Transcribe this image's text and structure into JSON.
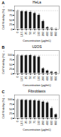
{
  "chart_data": [
    {
      "type": "bar",
      "title": "HeLa",
      "annotations": [
        "A"
      ],
      "categories": [
        "0",
        "12.5",
        "25",
        "50",
        "75",
        "100",
        "200",
        "400",
        "600",
        "800"
      ],
      "values": [
        100,
        98,
        97,
        94,
        88,
        78,
        45,
        12,
        8,
        6
      ],
      "errors": [
        3,
        3,
        4,
        5,
        5,
        6,
        5,
        3,
        2,
        2
      ],
      "colors": [
        "#b0b0b0",
        "#1a1a1a",
        "#1a1a1a",
        "#1a1a1a",
        "#1a1a1a",
        "#1a1a1a",
        "#1a1a1a",
        "#1a1a1a",
        "#1a1a1a",
        "#1a1a1a"
      ],
      "reference_lines": [
        100
      ],
      "xlabel": "Concentration (μg/mL)",
      "ylabel": "Cell Viability (%)",
      "ylim": [
        0,
        125
      ],
      "yticks": [
        0,
        25,
        50,
        75,
        100
      ],
      "grid": false
    },
    {
      "type": "bar",
      "title": "U2OS",
      "annotations": [
        "B"
      ],
      "categories": [
        "0",
        "12.5",
        "25",
        "50",
        "75",
        "100",
        "200",
        "400",
        "600",
        "800"
      ],
      "values": [
        100,
        99,
        100,
        101,
        96,
        92,
        30,
        18,
        12,
        10
      ],
      "errors": [
        3,
        3,
        3,
        4,
        4,
        5,
        4,
        3,
        2,
        2
      ],
      "colors": [
        "#b0b0b0",
        "#1a1a1a",
        "#1a1a1a",
        "#1a1a1a",
        "#1a1a1a",
        "#1a1a1a",
        "#1a1a1a",
        "#1a1a1a",
        "#1a1a1a",
        "#1a1a1a"
      ],
      "reference_lines": [
        100
      ],
      "xlabel": "Concentration (μg/mL)",
      "ylabel": "Cell Viability (%)",
      "ylim": [
        0,
        125
      ],
      "yticks": [
        0,
        25,
        50,
        75,
        100
      ],
      "grid": false
    },
    {
      "type": "bar",
      "title": "Fibroblasts",
      "annotations": [
        "C"
      ],
      "categories": [
        "0",
        "12.5",
        "25",
        "50",
        "75",
        "100",
        "200",
        "400",
        "600",
        "800"
      ],
      "values": [
        100,
        100,
        99,
        98,
        97,
        95,
        90,
        85,
        55,
        22
      ],
      "errors": [
        3,
        3,
        3,
        3,
        4,
        4,
        4,
        5,
        6,
        4
      ],
      "colors": [
        "#b0b0b0",
        "#1a1a1a",
        "#1a1a1a",
        "#1a1a1a",
        "#1a1a1a",
        "#1a1a1a",
        "#1a1a1a",
        "#1a1a1a",
        "#1a1a1a",
        "#1a1a1a"
      ],
      "reference_lines": [
        100
      ],
      "xlabel": "Concentration (μg/mL)",
      "ylabel": "Cell Viability (%)",
      "ylim": [
        0,
        125
      ],
      "yticks": [
        0,
        25,
        50,
        75,
        100
      ],
      "grid": false
    }
  ]
}
